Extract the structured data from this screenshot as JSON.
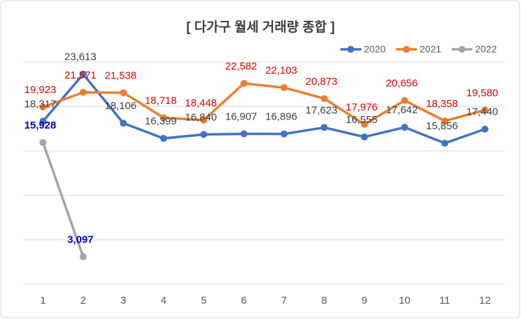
{
  "chart_data": {
    "type": "line",
    "title": "[ 다가구 월세 거래량 종합 ]",
    "categories": [
      "1",
      "2",
      "3",
      "4",
      "5",
      "6",
      "7",
      "8",
      "9",
      "10",
      "11",
      "12"
    ],
    "series": [
      {
        "name": "2020",
        "color": "#4472c4",
        "label_color": "#404040",
        "values": [
          18317,
          23613,
          18106,
          16399,
          16840,
          16907,
          16896,
          17623,
          16555,
          17642,
          15856,
          17440
        ],
        "value_labels": [
          "18,317",
          "23,613",
          "18,106",
          "16,399",
          "16,840",
          "16,907",
          "16,896",
          "17,623",
          "16,555",
          "17,642",
          "15,856",
          "17,440"
        ]
      },
      {
        "name": "2021",
        "color": "#ed7d31",
        "label_color": "#e00000",
        "values": [
          19923,
          21571,
          21538,
          18718,
          18448,
          22582,
          22103,
          20873,
          17976,
          20656,
          18358,
          19580
        ],
        "value_labels": [
          "19,923",
          "21,571",
          "21,538",
          "18,718",
          "18,448",
          "22,582",
          "22,103",
          "20,873",
          "17,976",
          "20,656",
          "18,358",
          "19,580"
        ]
      },
      {
        "name": "2022",
        "color": "#a5a5a5",
        "label_color": "#0000cc",
        "label_bold": true,
        "values": [
          15928,
          3097,
          null,
          null,
          null,
          null,
          null,
          null,
          null,
          null,
          null,
          null
        ],
        "value_labels": [
          "15,928",
          "3,097",
          null,
          null,
          null,
          null,
          null,
          null,
          null,
          null,
          null,
          null
        ]
      }
    ],
    "ylim": [
      0,
      25000
    ],
    "yticks": [
      0,
      5000,
      10000,
      15000,
      20000,
      25000
    ],
    "grid": true,
    "legend": "top-right"
  }
}
